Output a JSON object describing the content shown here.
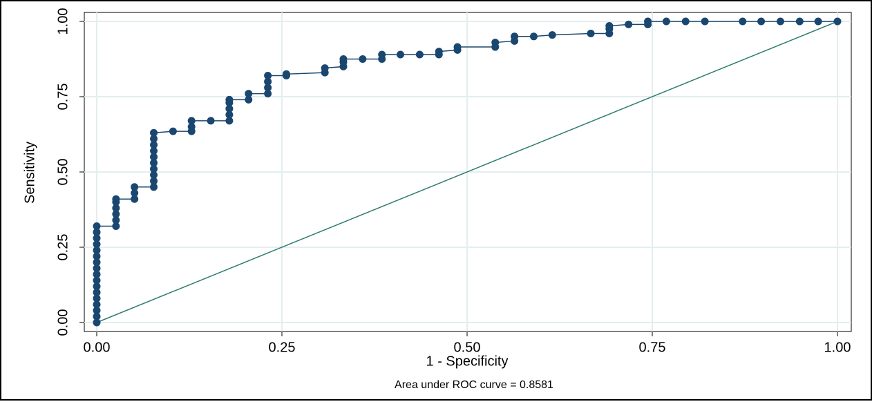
{
  "chart_data": {
    "type": "line",
    "xlabel": "1 - Specificity",
    "ylabel": "Sensitivity",
    "note": "Area under ROC curve = 0.8581",
    "xlim": [
      0,
      1
    ],
    "ylim": [
      0,
      1
    ],
    "xticks": [
      {
        "value": 0,
        "label": "0.00"
      },
      {
        "value": 0.25,
        "label": "0.25"
      },
      {
        "value": 0.5,
        "label": "0.50"
      },
      {
        "value": 0.75,
        "label": "0.75"
      },
      {
        "value": 1,
        "label": "1.00"
      }
    ],
    "yticks": [
      {
        "value": 0,
        "label": "0.00"
      },
      {
        "value": 0.25,
        "label": "0.25"
      },
      {
        "value": 0.5,
        "label": "0.50"
      },
      {
        "value": 0.75,
        "label": "0.75"
      },
      {
        "value": 1,
        "label": "1.00"
      }
    ],
    "grid": true,
    "series": [
      {
        "color": "#1a476f",
        "x": [
          0,
          0,
          0,
          0,
          0,
          0,
          0,
          0,
          0,
          0,
          0,
          0,
          0,
          0,
          0,
          0,
          0,
          0.026,
          0.026,
          0.026,
          0.026,
          0.026,
          0.026,
          0.051,
          0.051,
          0.051,
          0.077,
          0.077,
          0.077,
          0.077,
          0.077,
          0.077,
          0.077,
          0.077,
          0.077,
          0.077,
          0.103,
          0.128,
          0.128,
          0.128,
          0.154,
          0.179,
          0.179,
          0.179,
          0.179,
          0.179,
          0.205,
          0.205,
          0.231,
          0.231,
          0.231,
          0.231,
          0.256,
          0.256,
          0.308,
          0.308,
          0.333,
          0.333,
          0.333,
          0.359,
          0.385,
          0.385,
          0.41,
          0.436,
          0.462,
          0.462,
          0.487,
          0.487,
          0.538,
          0.538,
          0.564,
          0.564,
          0.59,
          0.615,
          0.667,
          0.692,
          0.692,
          0.692,
          0.718,
          0.744,
          0.744,
          0.769,
          0.795,
          0.821,
          0.872,
          0.897,
          0.923,
          0.949,
          0.974,
          1
        ],
        "values": [
          0,
          0.02,
          0.04,
          0.06,
          0.08,
          0.1,
          0.12,
          0.14,
          0.16,
          0.18,
          0.2,
          0.22,
          0.24,
          0.26,
          0.28,
          0.3,
          0.32,
          0.32,
          0.34,
          0.36,
          0.38,
          0.4,
          0.41,
          0.41,
          0.43,
          0.45,
          0.45,
          0.47,
          0.49,
          0.51,
          0.53,
          0.55,
          0.57,
          0.59,
          0.61,
          0.63,
          0.635,
          0.635,
          0.65,
          0.67,
          0.67,
          0.67,
          0.69,
          0.71,
          0.73,
          0.74,
          0.74,
          0.76,
          0.76,
          0.78,
          0.8,
          0.82,
          0.82,
          0.825,
          0.83,
          0.845,
          0.85,
          0.865,
          0.875,
          0.875,
          0.875,
          0.89,
          0.89,
          0.89,
          0.89,
          0.9,
          0.905,
          0.915,
          0.915,
          0.93,
          0.935,
          0.95,
          0.95,
          0.955,
          0.96,
          0.96,
          0.975,
          0.985,
          0.99,
          0.99,
          1,
          1,
          1,
          1,
          1,
          1,
          1,
          1,
          1,
          1
        ]
      }
    ],
    "reference": {
      "color": "#2e7d6f",
      "x": [
        0,
        1
      ],
      "values": [
        0,
        1
      ]
    }
  }
}
